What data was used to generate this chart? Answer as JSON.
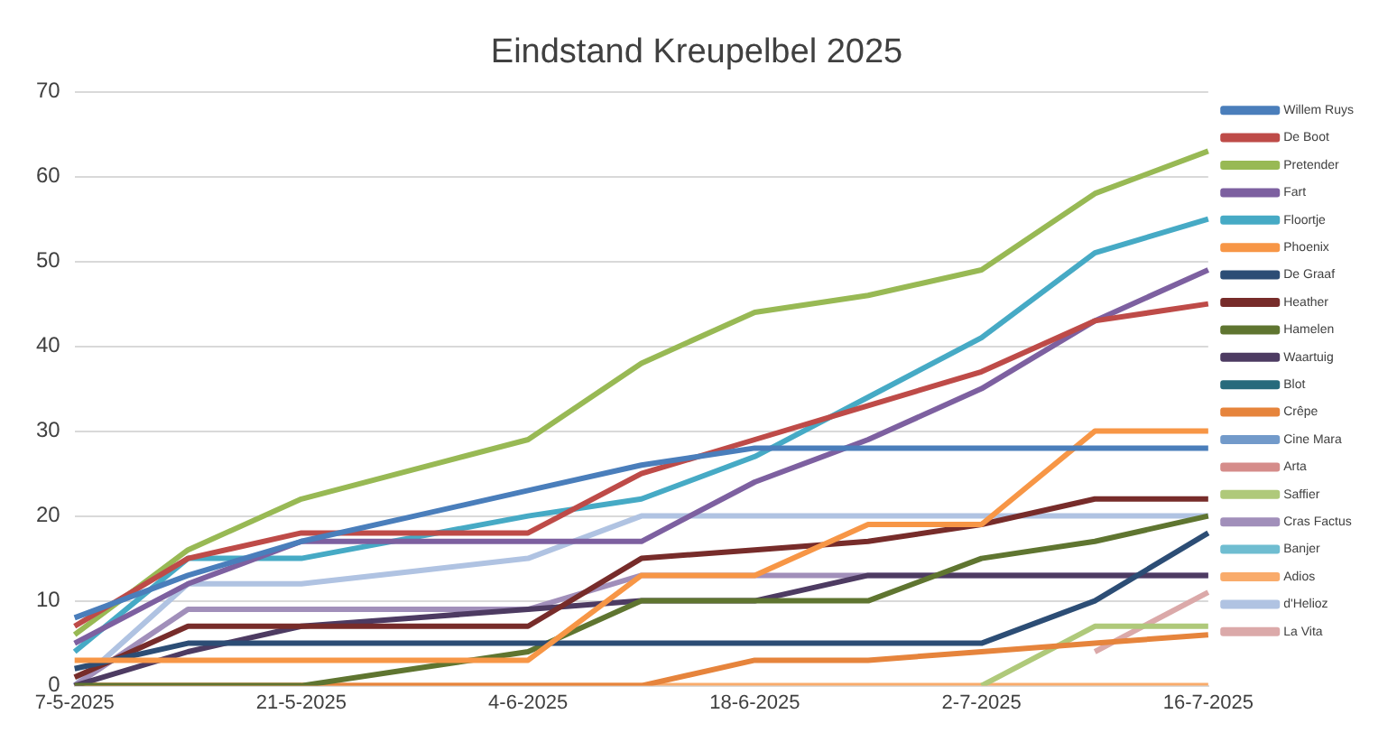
{
  "chart_data": {
    "type": "line",
    "title": "Eindstand Kreupelbel 2025",
    "categories": [
      "7-5-2025",
      null,
      "21-5-2025",
      null,
      "4-6-2025",
      null,
      "18-6-2025",
      null,
      "2-7-2025",
      null,
      "16-7-2025"
    ],
    "ylim": [
      0,
      70
    ],
    "yticks": [
      0,
      10,
      20,
      30,
      40,
      50,
      60,
      70
    ],
    "grid": "y",
    "legend": "right",
    "marker": "none",
    "series": [
      {
        "name": "Willem Ruys",
        "color": "#4a7ebb",
        "values": [
          8,
          13,
          17,
          20,
          23,
          26,
          28,
          28,
          28,
          28,
          28
        ]
      },
      {
        "name": "De Boot",
        "color": "#be4b48",
        "values": [
          7,
          15,
          18,
          18,
          18,
          25,
          29,
          33,
          37,
          43,
          45
        ]
      },
      {
        "name": "Pretender",
        "color": "#98b954",
        "values": [
          6,
          16,
          22,
          25.5,
          29,
          38,
          44,
          46,
          49,
          58,
          63
        ]
      },
      {
        "name": "Fart",
        "color": "#7d60a0",
        "values": [
          5,
          12,
          17,
          17,
          17,
          17,
          24,
          29,
          35,
          43,
          49
        ]
      },
      {
        "name": "Floortje",
        "color": "#46aac5",
        "values": [
          4,
          15,
          15,
          17.5,
          20,
          22,
          27,
          34,
          41,
          51,
          55
        ]
      },
      {
        "name": "Phoenix",
        "color": "#f79646",
        "values": [
          3,
          3,
          3,
          3,
          3,
          13,
          13,
          19,
          19,
          30,
          30
        ]
      },
      {
        "name": "De Graaf",
        "color": "#2c4d75",
        "values": [
          2,
          5,
          5,
          5,
          5,
          5,
          5,
          5,
          5,
          10,
          18
        ]
      },
      {
        "name": "Heather",
        "color": "#772c2a",
        "values": [
          1,
          7,
          7,
          7,
          7,
          15,
          16,
          17,
          19,
          22,
          22
        ]
      },
      {
        "name": "Hamelen",
        "color": "#5f7530",
        "values": [
          0,
          0,
          0,
          2,
          4,
          10,
          10,
          10,
          15,
          17,
          20
        ]
      },
      {
        "name": "Waartuig",
        "color": "#4d3b62",
        "values": [
          0,
          4,
          7,
          8,
          9,
          10,
          10,
          13,
          13,
          13,
          13
        ]
      },
      {
        "name": "Blot",
        "color": "#276a7c",
        "values": [
          null,
          null,
          null,
          null,
          null,
          null,
          null,
          null,
          null,
          null,
          null
        ]
      },
      {
        "name": "Crêpe",
        "color": "#e6843c",
        "values": [
          0,
          0,
          0,
          0,
          0,
          0,
          3,
          3,
          4,
          5,
          6
        ]
      },
      {
        "name": "Cine Mara",
        "color": "#729aca",
        "values": [
          null,
          null,
          null,
          null,
          null,
          null,
          null,
          null,
          null,
          null,
          null
        ]
      },
      {
        "name": "Arta",
        "color": "#d58c8a",
        "values": [
          null,
          null,
          null,
          null,
          null,
          null,
          null,
          null,
          null,
          null,
          null
        ]
      },
      {
        "name": "Saffier",
        "color": "#afc97a",
        "values": [
          null,
          null,
          null,
          null,
          null,
          null,
          null,
          null,
          0,
          7,
          7
        ]
      },
      {
        "name": "Cras Factus",
        "color": "#a18fba",
        "values": [
          0,
          9,
          9,
          9,
          9,
          13,
          13,
          13,
          13,
          13,
          13
        ]
      },
      {
        "name": "Banjer",
        "color": "#6fbdd1",
        "values": [
          null,
          null,
          null,
          null,
          null,
          null,
          null,
          null,
          null,
          null,
          null
        ]
      },
      {
        "name": "Adios",
        "color": "#f9ab6b",
        "values": [
          0,
          0,
          0,
          0,
          0,
          0,
          0,
          0,
          0,
          0,
          0
        ]
      },
      {
        "name": "d'Helioz",
        "color": "#b0c3e2",
        "values": [
          0,
          12,
          12,
          13.5,
          15,
          20,
          20,
          20,
          20,
          20,
          20
        ]
      },
      {
        "name": "La Vita",
        "color": "#dba9a9",
        "values": [
          null,
          null,
          null,
          null,
          null,
          null,
          null,
          null,
          null,
          4,
          11
        ]
      }
    ]
  }
}
